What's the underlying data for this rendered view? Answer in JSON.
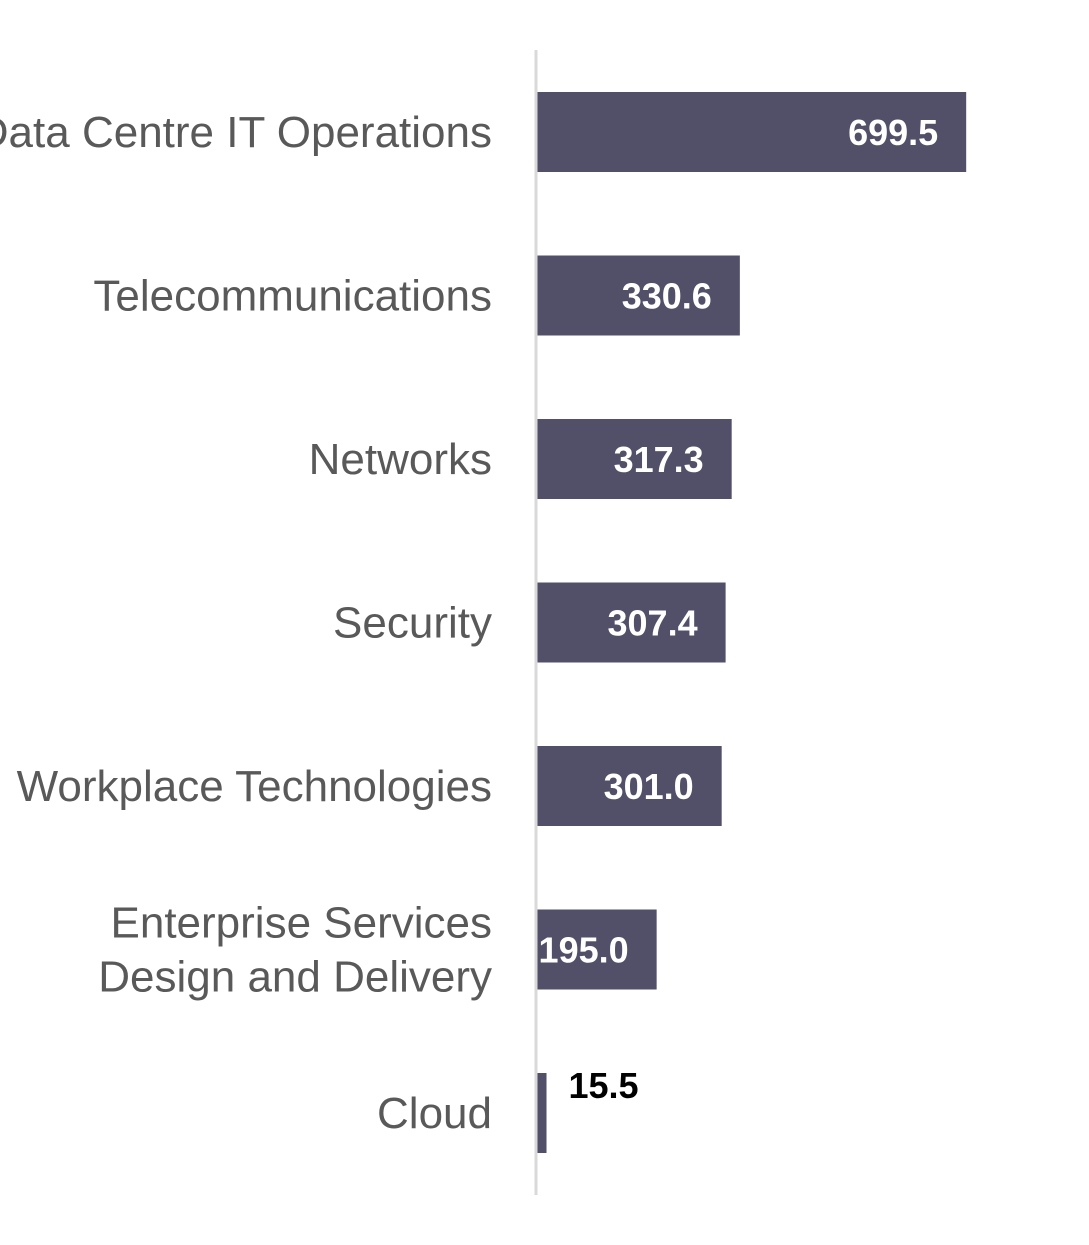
{
  "chart_data": {
    "type": "bar",
    "orientation": "horizontal",
    "categories": [
      [
        "Data Centre IT Operations"
      ],
      [
        "Telecommunications"
      ],
      [
        "Networks"
      ],
      [
        "Security"
      ],
      [
        "Workplace Technologies"
      ],
      [
        "Enterprise Services",
        "Design and Delivery"
      ],
      [
        "Cloud"
      ]
    ],
    "values": [
      699.5,
      330.6,
      317.3,
      307.4,
      301.0,
      195.0,
      15.5
    ],
    "value_labels": [
      "699.5",
      "330.6",
      "317.3",
      "307.4",
      "301.0",
      "195.0",
      "15.5"
    ],
    "title": "",
    "xlabel": "",
    "ylabel": "",
    "xlim": [
      0,
      885
    ],
    "grid": false,
    "legend": "none",
    "colors": {
      "bar": "#524F68",
      "axis": "#D9D9D9",
      "category_text": "#595959",
      "value_text_inside": "#FFFFFF",
      "value_text_outside": "#000000"
    }
  }
}
